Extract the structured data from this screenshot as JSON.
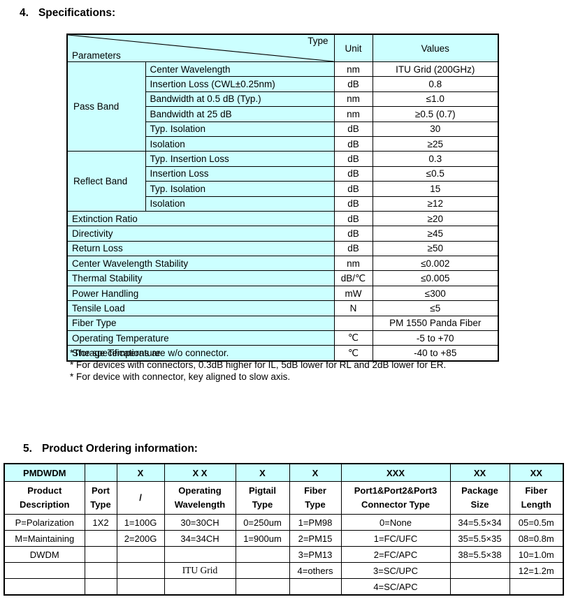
{
  "headings": {
    "spec_no": "4.",
    "spec_title": "Specifications:",
    "order_no": "5.",
    "order_title": "Product Ordering information:"
  },
  "colors": {
    "header_bg": "#CCFFFF",
    "border": "#000000",
    "text": "#000000",
    "page_bg": "#FFFFFF"
  },
  "spec_table": {
    "header": {
      "type": "Type",
      "parameters": "Parameters",
      "unit": "Unit",
      "values": "Values"
    },
    "rows": [
      {
        "group": {
          "label": "Pass Band",
          "span": 6
        },
        "param": "Center Wavelength",
        "unit": "nm",
        "value": "ITU Grid (200GHz)"
      },
      {
        "in_group": true,
        "param": "Insertion Loss (CWL±0.25nm)",
        "unit": "dB",
        "value": "0.8"
      },
      {
        "in_group": true,
        "param": "Bandwidth at 0.5 dB (Typ.)",
        "unit": "nm",
        "value": "≤1.0"
      },
      {
        "in_group": true,
        "param": "Bandwidth at 25 dB",
        "unit": "nm",
        "value": "≥0.5 (0.7)"
      },
      {
        "in_group": true,
        "param": "Typ. Isolation",
        "unit": "dB",
        "value": "30"
      },
      {
        "in_group": true,
        "param": "Isolation",
        "unit": "dB",
        "value": "≥25"
      },
      {
        "group": {
          "label": "Reflect Band",
          "span": 4
        },
        "param": "Typ. Insertion Loss",
        "unit": "dB",
        "value": "0.3"
      },
      {
        "in_group": true,
        "param": "Insertion Loss",
        "unit": "dB",
        "value": "≤0.5"
      },
      {
        "in_group": true,
        "param": "Typ. Isolation",
        "unit": "dB",
        "value": "15"
      },
      {
        "in_group": true,
        "param": "Isolation",
        "unit": "dB",
        "value": "≥12"
      },
      {
        "param": "Extinction Ratio",
        "unit": "dB",
        "value": "≥20"
      },
      {
        "param": "Directivity",
        "unit": "dB",
        "value": "≥45"
      },
      {
        "param": "Return Loss",
        "unit": "dB",
        "value": "≥50"
      },
      {
        "param": "Center Wavelength Stability",
        "unit": "nm",
        "value": "≤0.002"
      },
      {
        "param": "Thermal Stability",
        "unit": "dB/℃",
        "value": "≤0.005"
      },
      {
        "param": "Power Handling",
        "unit": "mW",
        "value": "≤300"
      },
      {
        "param": "Tensile Load",
        "unit": "N",
        "value": "≤5"
      },
      {
        "param": "Fiber Type",
        "unit": "",
        "value": "PM 1550 Panda Fiber"
      },
      {
        "param": "Operating Temperature",
        "unit": "℃",
        "value": "-5 to +70"
      },
      {
        "param": "Storage Temperature",
        "unit": "℃",
        "value": "-40 to +85"
      }
    ]
  },
  "footnotes": [
    "*The specifications are w/o connector.",
    "* For devices with connectors, 0.3dB higher for IL, 5dB lower for RL and 2dB lower for ER.",
    "* For device with connector, key aligned to slow axis."
  ],
  "order_table": {
    "code_row": [
      "PMDWDM",
      "",
      "X",
      "X X",
      "X",
      "X",
      "XXX",
      "XX",
      "XX"
    ],
    "header_row": [
      [
        "Product",
        "Description"
      ],
      [
        "Port",
        "Type"
      ],
      [
        "/"
      ],
      [
        "Operating",
        "Wavelength"
      ],
      [
        "Pigtail",
        "Type"
      ],
      [
        "Fiber",
        "Type"
      ],
      [
        "Port1&Port2&Port3",
        "Connector Type"
      ],
      [
        "Package",
        "Size"
      ],
      [
        "Fiber",
        "Length"
      ]
    ],
    "rows": [
      [
        "P=Polarization",
        "1X2",
        "1=100G",
        "30=30CH",
        "0=250um",
        "1=PM98",
        "0=None",
        "34=5.5×34",
        "05=0.5m"
      ],
      [
        "M=Maintaining",
        "",
        "2=200G",
        "34=34CH",
        "1=900um",
        "2=PM15",
        "1=FC/UFC",
        "35=5.5×35",
        "08=0.8m"
      ],
      [
        "DWDM",
        "",
        "",
        "",
        "",
        "3=PM13",
        "2=FC/APC",
        "38=5.5×38",
        "10=1.0m"
      ],
      [
        "",
        "",
        "",
        "ITU Grid",
        "",
        "4=others",
        "3=SC/UPC",
        "",
        "12=1.2m"
      ],
      [
        "",
        "",
        "",
        "",
        "",
        "",
        "4=SC/APC",
        "",
        ""
      ]
    ],
    "serif_cell": {
      "row": 3,
      "col": 3
    }
  }
}
